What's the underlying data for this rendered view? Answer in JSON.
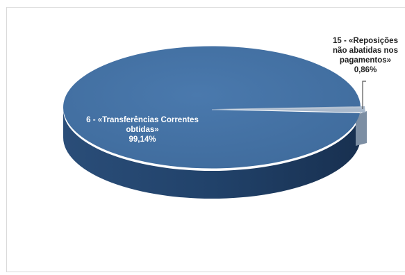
{
  "chart_data": {
    "type": "pie",
    "variant": "3d",
    "title": "",
    "slices": [
      {
        "label_line1": "6 - «Transferências Correntes",
        "label_line2": "obtidas»",
        "value_text": "99,14%",
        "value": 99.14,
        "color": "#4472a8"
      },
      {
        "label_line1": "15 - «Reposições",
        "label_line2": "não abatidas nos",
        "label_line3": "pagamentos»",
        "value_text": "0,86%",
        "value": 0.86,
        "color": "#a3b3c6"
      }
    ],
    "legend": "none"
  }
}
